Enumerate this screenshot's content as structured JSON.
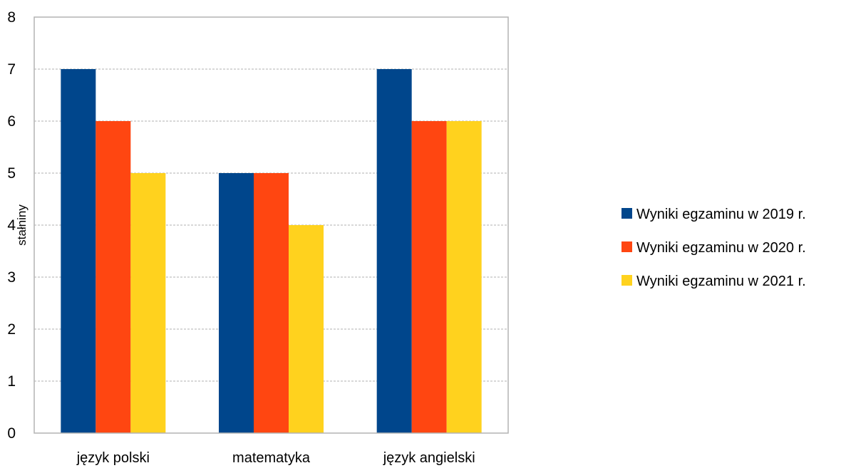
{
  "chart_data": {
    "type": "bar",
    "title": "",
    "xlabel": "",
    "ylabel": "stałniny",
    "categories": [
      "język polski",
      "matematyka",
      "język angielski"
    ],
    "series": [
      {
        "name": "Wyniki egzaminu w 2019 r.",
        "values": [
          7,
          5,
          7
        ],
        "color": "#00468c"
      },
      {
        "name": "Wyniki egzaminu w 2020 r.",
        "values": [
          6,
          5,
          6
        ],
        "color": "#ff4611"
      },
      {
        "name": "Wyniki egzaminu w 2021 r.",
        "values": [
          5,
          4,
          6
        ],
        "color": "#ffd21e"
      }
    ],
    "ylim": [
      0,
      8
    ],
    "yticks": [
      "0",
      "1",
      "2",
      "3",
      "4",
      "5",
      "6",
      "7",
      "8"
    ],
    "grid": true,
    "legend_position": "right"
  }
}
